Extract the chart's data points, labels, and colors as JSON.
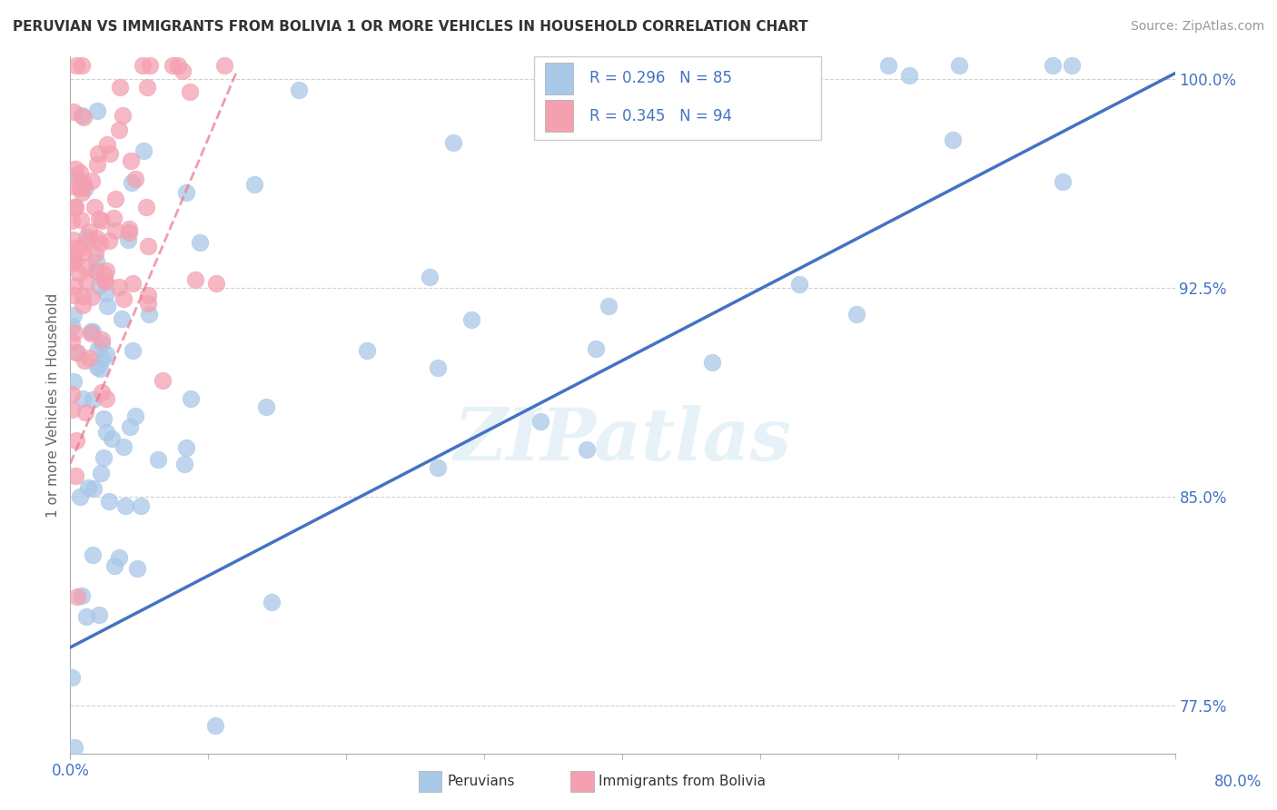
{
  "title": "PERUVIAN VS IMMIGRANTS FROM BOLIVIA 1 OR MORE VEHICLES IN HOUSEHOLD CORRELATION CHART",
  "source": "Source: ZipAtlas.com",
  "legend_blue_text": "R = 0.296   N = 85",
  "legend_pink_text": "R = 0.345   N = 94",
  "blue_color": "#a8c8e8",
  "pink_color": "#f4a0b0",
  "trend_blue_color": "#4472c4",
  "trend_pink_color": "#e8748a",
  "watermark": "ZIPatlas",
  "xmin": 0.0,
  "xmax": 0.8,
  "ymin": 0.758,
  "ymax": 1.008,
  "yticks": [
    1.0,
    0.925,
    0.85,
    0.775
  ],
  "ytick_labels": [
    "100.0%",
    "92.5%",
    "85.0%",
    "77.5%"
  ],
  "grid_color": "#cccccc",
  "background_color": "#ffffff",
  "text_color": "#333333",
  "tick_color": "#4472c4",
  "ylabel_color": "#666666",
  "blue_trend_x": [
    0.0,
    0.8
  ],
  "blue_trend_y": [
    0.796,
    1.002
  ],
  "pink_trend_x": [
    0.0,
    0.12
  ],
  "pink_trend_y": [
    0.862,
    1.002
  ]
}
